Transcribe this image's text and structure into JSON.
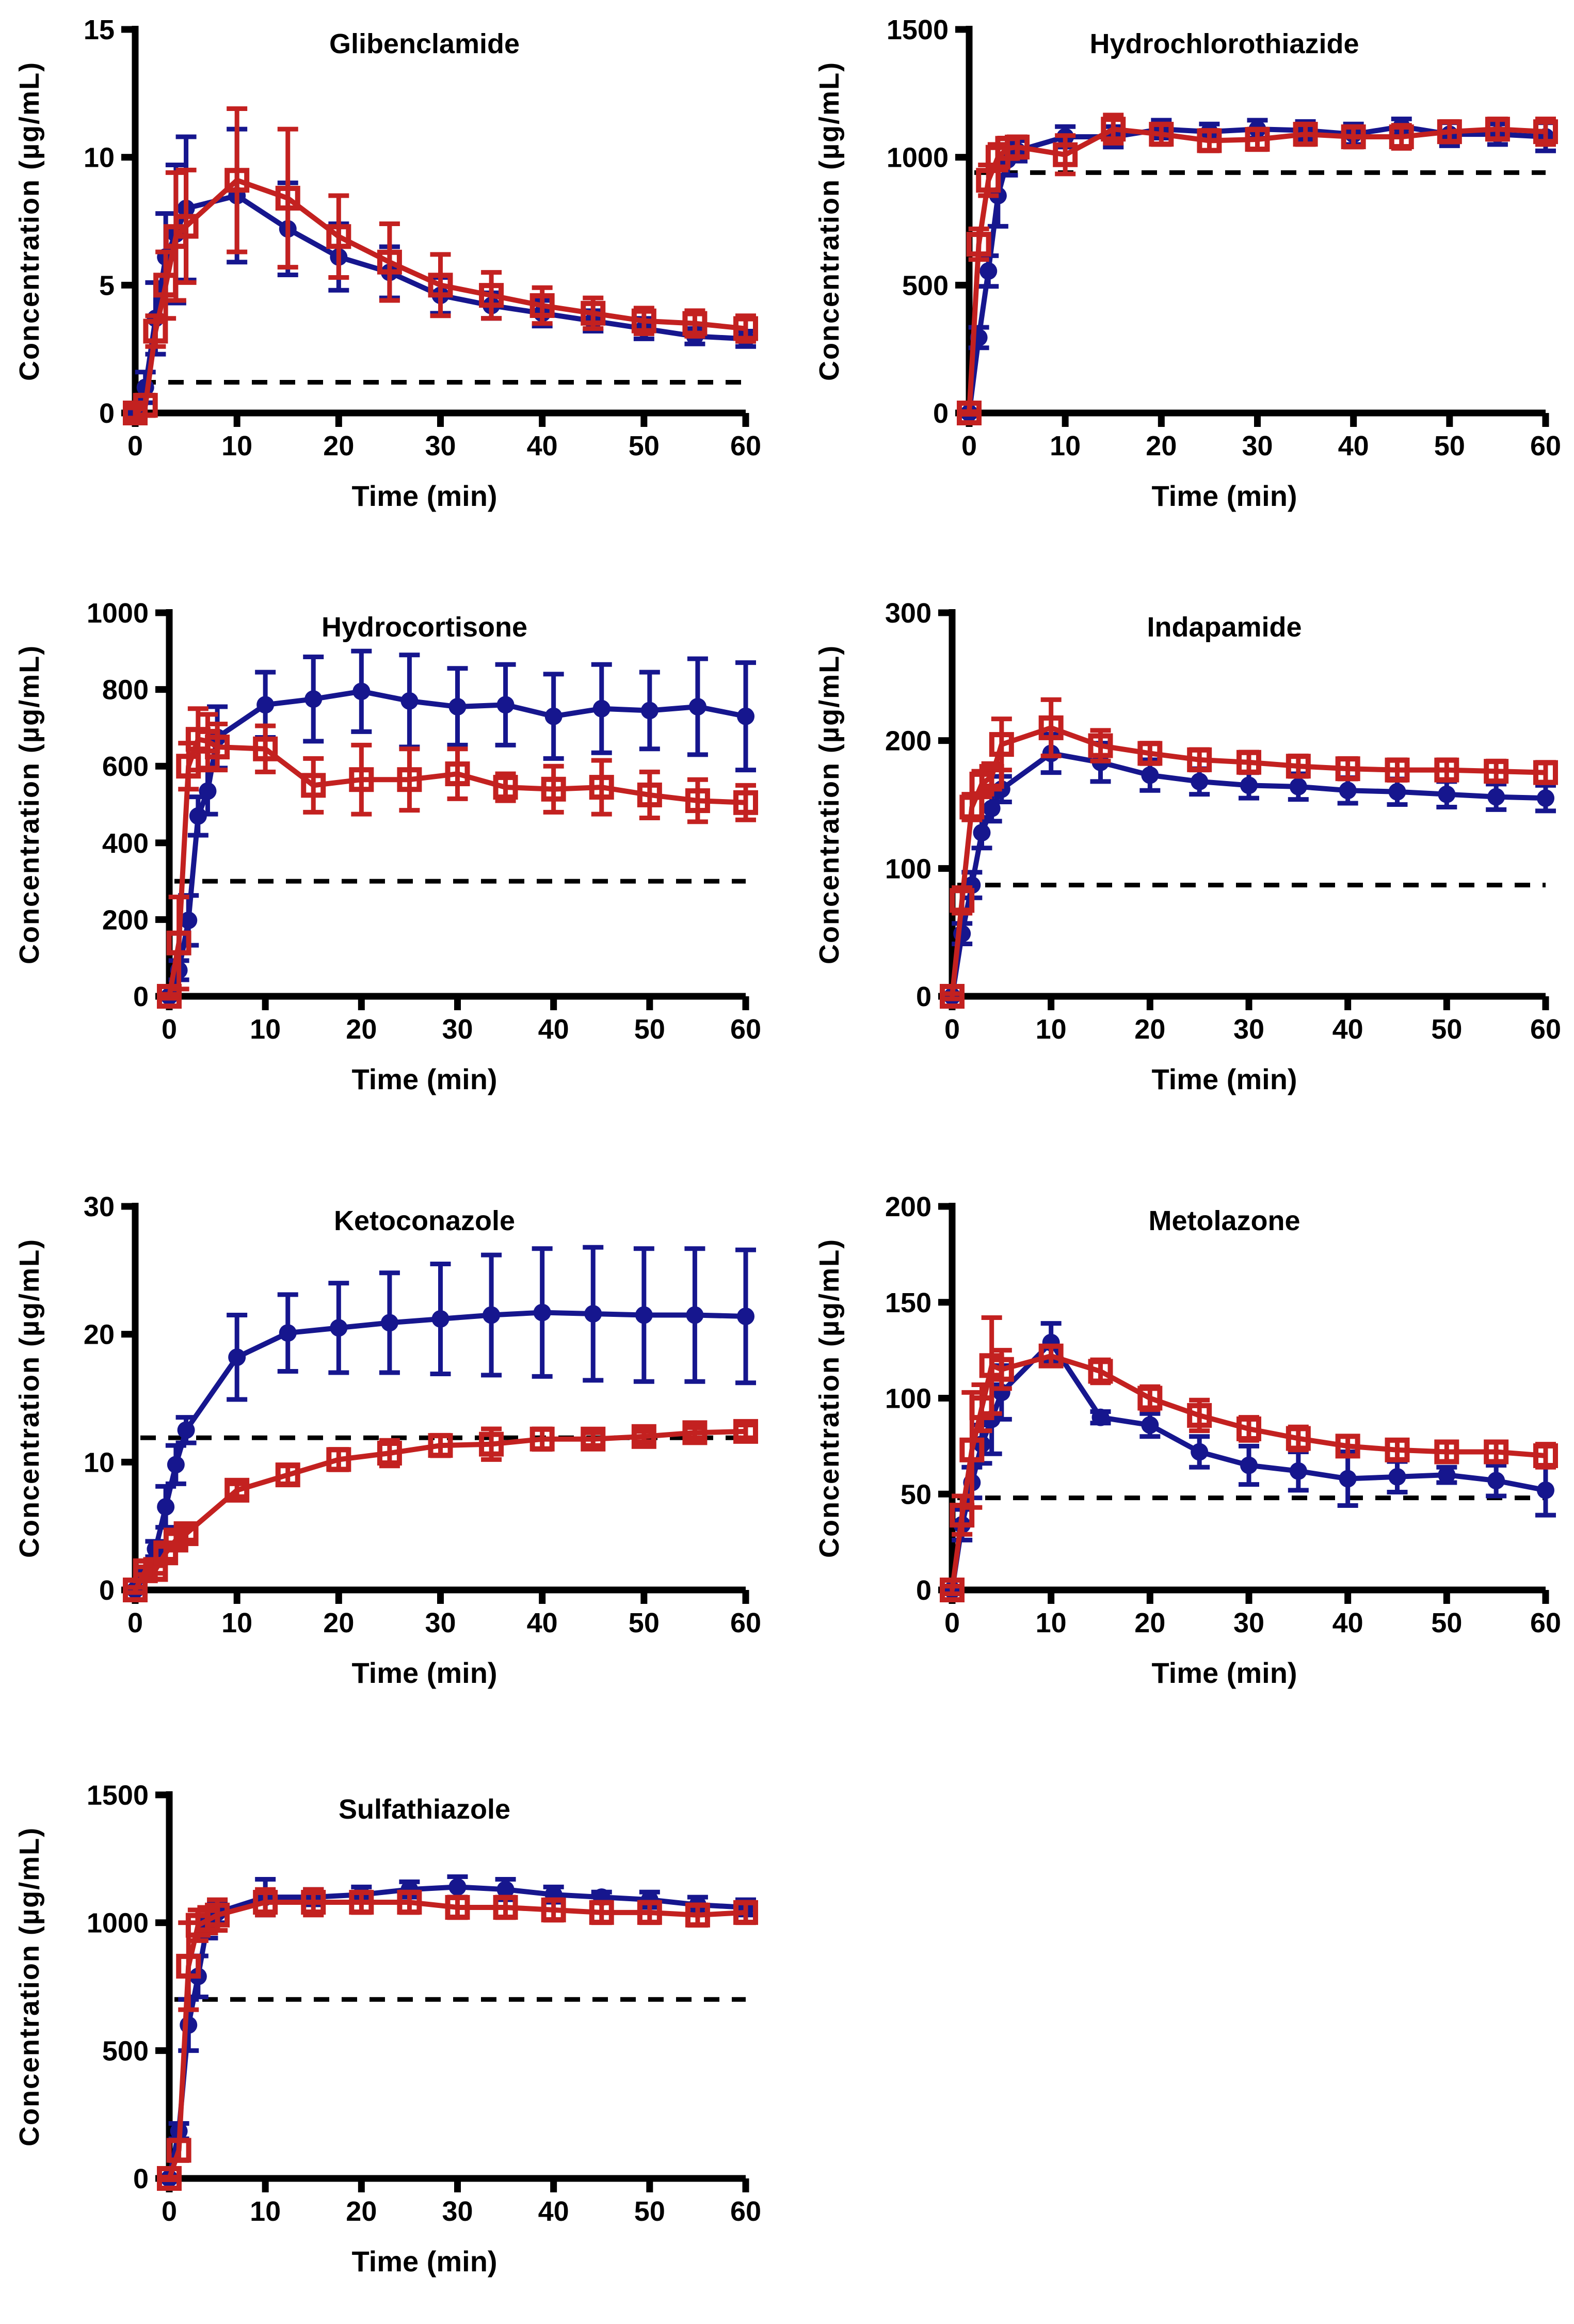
{
  "figure": {
    "background_color": "#FFFFFF",
    "xlabel": "Time (min)",
    "ylabel": "Concentration (µg/mL)",
    "series_style": {
      "blue": {
        "color": "#16168E",
        "marker": "filled-circle"
      },
      "red": {
        "color": "#C32120",
        "marker": "open-square"
      }
    },
    "reference_line_style": "black-dashed"
  },
  "chart_data": [
    {
      "type": "line",
      "title": "Glibenclamide",
      "xlabel": "Time (min)",
      "ylabel": "Concentration (µg/mL)",
      "xlim": [
        0,
        60
      ],
      "ylim": [
        0,
        15
      ],
      "xticks": [
        0,
        10,
        20,
        30,
        40,
        50,
        60
      ],
      "yticks": [
        0,
        5,
        10,
        15
      ],
      "dashed_reference_line": 1.2,
      "x": [
        0,
        1,
        2,
        3,
        4,
        5,
        10,
        15,
        20,
        25,
        30,
        35,
        40,
        45,
        50,
        55,
        60
      ],
      "series": [
        {
          "name": "blue-filled-circles",
          "color": "#16168E",
          "marker": "circle",
          "values": [
            0,
            1.0,
            3.7,
            6.1,
            7.0,
            8.0,
            8.5,
            7.2,
            6.1,
            5.5,
            4.6,
            4.2,
            3.9,
            3.6,
            3.3,
            3.0,
            2.9
          ],
          "errors": [
            0.1,
            0.6,
            1.4,
            1.7,
            2.7,
            2.8,
            2.6,
            1.8,
            1.3,
            1.0,
            0.7,
            0.5,
            0.5,
            0.4,
            0.4,
            0.3,
            0.3
          ]
        },
        {
          "name": "red-open-squares",
          "color": "#C32120",
          "marker": "square",
          "values": [
            0,
            0.3,
            3.2,
            5.0,
            6.9,
            7.3,
            9.1,
            8.4,
            6.9,
            5.9,
            5.0,
            4.6,
            4.2,
            3.9,
            3.6,
            3.5,
            3.3
          ],
          "errors": [
            0.2,
            0.4,
            0.6,
            1.3,
            2.5,
            2.2,
            2.8,
            2.7,
            1.6,
            1.5,
            1.2,
            0.9,
            0.7,
            0.6,
            0.5,
            0.5,
            0.5
          ]
        }
      ]
    },
    {
      "type": "line",
      "title": "Hydrochlorothiazide",
      "xlabel": "Time (min)",
      "ylabel": "Concentration (µg/mL)",
      "xlim": [
        0,
        60
      ],
      "ylim": [
        0,
        1500
      ],
      "xticks": [
        0,
        10,
        20,
        30,
        40,
        50,
        60
      ],
      "yticks": [
        0,
        500,
        1000,
        1500
      ],
      "dashed_reference_line": 940,
      "x": [
        0,
        1,
        2,
        3,
        4,
        5,
        10,
        15,
        20,
        25,
        30,
        35,
        40,
        45,
        50,
        55,
        60
      ],
      "series": [
        {
          "name": "blue-filled-circles",
          "color": "#16168E",
          "marker": "circle",
          "values": [
            0,
            295,
            555,
            850,
            990,
            1025,
            1080,
            1080,
            1110,
            1100,
            1110,
            1105,
            1090,
            1120,
            1090,
            1090,
            1080
          ],
          "errors": [
            5,
            40,
            60,
            120,
            60,
            40,
            40,
            40,
            35,
            30,
            35,
            35,
            40,
            30,
            45,
            40,
            55
          ]
        },
        {
          "name": "red-open-squares",
          "color": "#C32120",
          "marker": "square",
          "values": [
            0,
            660,
            910,
            1000,
            1035,
            1040,
            1010,
            1110,
            1090,
            1065,
            1070,
            1090,
            1080,
            1080,
            1100,
            1110,
            1100
          ],
          "errors": [
            5,
            60,
            60,
            50,
            40,
            40,
            75,
            55,
            40,
            40,
            40,
            40,
            40,
            45,
            40,
            40,
            50
          ]
        }
      ]
    },
    {
      "type": "line",
      "title": "Hydrocortisone",
      "xlabel": "Time (min)",
      "ylabel": "Concentration (µg/mL)",
      "xlim": [
        0,
        60
      ],
      "ylim": [
        0,
        1000
      ],
      "xticks": [
        0,
        10,
        20,
        30,
        40,
        50,
        60
      ],
      "yticks": [
        0,
        200,
        400,
        600,
        800,
        1000
      ],
      "dashed_reference_line": 300,
      "x": [
        0,
        1,
        2,
        3,
        4,
        5,
        10,
        15,
        20,
        25,
        30,
        35,
        40,
        45,
        50,
        55,
        60
      ],
      "series": [
        {
          "name": "blue-filled-circles",
          "color": "#16168E",
          "marker": "circle",
          "values": [
            0,
            68,
            198,
            470,
            535,
            675,
            760,
            775,
            795,
            770,
            755,
            760,
            730,
            750,
            745,
            755,
            730
          ],
          "errors": [
            5,
            25,
            65,
            50,
            60,
            80,
            85,
            110,
            105,
            120,
            100,
            105,
            110,
            115,
            100,
            125,
            140
          ]
        },
        {
          "name": "red-open-squares",
          "color": "#C32120",
          "marker": "square",
          "values": [
            0,
            139,
            600,
            670,
            665,
            650,
            645,
            550,
            565,
            565,
            580,
            545,
            540,
            545,
            525,
            510,
            505
          ],
          "errors": [
            5,
            120,
            60,
            80,
            70,
            60,
            60,
            70,
            90,
            80,
            65,
            35,
            60,
            70,
            60,
            55,
            45
          ]
        }
      ]
    },
    {
      "type": "line",
      "title": "Indapamide",
      "xlabel": "Time (min)",
      "ylabel": "Concentration (µg/mL)",
      "xlim": [
        0,
        60
      ],
      "ylim": [
        0,
        300
      ],
      "xticks": [
        0,
        10,
        20,
        30,
        40,
        50,
        60
      ],
      "yticks": [
        0,
        100,
        200,
        300
      ],
      "dashed_reference_line": 87,
      "x": [
        0,
        1,
        2,
        3,
        4,
        5,
        10,
        15,
        20,
        25,
        30,
        35,
        40,
        45,
        50,
        55,
        60
      ],
      "series": [
        {
          "name": "blue-filled-circles",
          "color": "#16168E",
          "marker": "circle",
          "values": [
            0,
            49,
            87,
            128,
            147,
            162,
            190,
            183,
            173,
            168,
            165,
            164,
            161,
            160,
            158,
            156,
            155
          ],
          "errors": [
            2,
            8,
            10,
            12,
            10,
            10,
            15,
            15,
            12,
            10,
            10,
            10,
            10,
            10,
            10,
            10,
            10
          ]
        },
        {
          "name": "red-open-squares",
          "color": "#C32120",
          "marker": "square",
          "values": [
            0,
            75,
            148,
            166,
            172,
            197,
            210,
            196,
            190,
            185,
            183,
            180,
            178,
            177,
            177,
            176,
            175
          ],
          "errors": [
            2,
            10,
            10,
            10,
            10,
            20,
            22,
            12,
            8,
            8,
            8,
            8,
            8,
            8,
            8,
            8,
            8
          ]
        }
      ]
    },
    {
      "type": "line",
      "title": "Ketoconazole",
      "xlabel": "Time (min)",
      "ylabel": "Concentration (µg/mL)",
      "xlim": [
        0,
        60
      ],
      "ylim": [
        0,
        30
      ],
      "xticks": [
        0,
        10,
        20,
        30,
        40,
        50,
        60
      ],
      "yticks": [
        0,
        10,
        20,
        30
      ],
      "dashed_reference_line": 11.9,
      "x": [
        0,
        1,
        2,
        3,
        4,
        5,
        10,
        15,
        20,
        25,
        30,
        35,
        40,
        45,
        50,
        55,
        60
      ],
      "series": [
        {
          "name": "blue-filled-circles",
          "color": "#16168E",
          "marker": "circle",
          "values": [
            0,
            1.2,
            3.2,
            6.5,
            9.8,
            12.5,
            18.2,
            20.1,
            20.5,
            20.9,
            21.2,
            21.5,
            21.7,
            21.6,
            21.5,
            21.5,
            21.4
          ],
          "errors": [
            0.2,
            0.4,
            0.6,
            1.6,
            1.5,
            1.0,
            3.3,
            3.0,
            3.5,
            3.9,
            4.3,
            4.7,
            5.0,
            5.2,
            5.2,
            5.2,
            5.2
          ]
        },
        {
          "name": "red-open-squares",
          "color": "#C32120",
          "marker": "square",
          "values": [
            0,
            1.5,
            1.6,
            2.9,
            3.9,
            4.4,
            7.8,
            9.0,
            10.2,
            10.7,
            11.3,
            11.4,
            11.8,
            11.8,
            12.0,
            12.3,
            12.4
          ],
          "errors": [
            0.2,
            0.3,
            0.3,
            0.5,
            0.5,
            0.5,
            0.5,
            0.7,
            0.8,
            1.0,
            0.8,
            1.2,
            0.8,
            0.5,
            0.4,
            0.4,
            0.5
          ]
        }
      ]
    },
    {
      "type": "line",
      "title": "Metolazone",
      "xlabel": "Time (min)",
      "ylabel": "Concentration (µg/mL)",
      "xlim": [
        0,
        60
      ],
      "ylim": [
        0,
        200
      ],
      "xticks": [
        0,
        10,
        20,
        30,
        40,
        50,
        60
      ],
      "yticks": [
        0,
        50,
        100,
        150,
        200
      ],
      "dashed_reference_line": 48,
      "x": [
        0,
        1,
        2,
        3,
        4,
        5,
        10,
        15,
        20,
        25,
        30,
        35,
        40,
        45,
        50,
        55,
        60
      ],
      "series": [
        {
          "name": "blue-filled-circles",
          "color": "#16168E",
          "marker": "circle",
          "values": [
            0,
            34,
            56,
            76,
            89,
            103,
            129,
            90,
            86,
            72,
            65,
            62,
            58,
            59,
            60,
            57,
            52
          ],
          "errors": [
            2,
            8,
            8,
            10,
            18,
            14,
            10,
            3,
            6,
            8,
            10,
            10,
            14,
            8,
            4,
            8,
            13
          ]
        },
        {
          "name": "red-open-squares",
          "color": "#C32120",
          "marker": "square",
          "values": [
            0,
            39,
            73,
            95,
            117,
            115,
            122,
            114,
            100,
            91,
            84,
            79,
            75,
            73,
            72,
            72,
            70
          ],
          "errors": [
            2,
            10,
            30,
            12,
            25,
            10,
            5,
            6,
            6,
            8,
            6,
            6,
            5,
            5,
            5,
            5,
            6
          ]
        }
      ]
    },
    {
      "type": "line",
      "title": "Sulfathiazole",
      "xlabel": "Time (min)",
      "ylabel": "Concentration (µg/mL)",
      "xlim": [
        0,
        60
      ],
      "ylim": [
        0,
        1500
      ],
      "xticks": [
        0,
        10,
        20,
        30,
        40,
        50,
        60
      ],
      "yticks": [
        0,
        500,
        1000,
        1500
      ],
      "dashed_reference_line": 700,
      "x": [
        0,
        1,
        2,
        3,
        4,
        5,
        10,
        15,
        20,
        25,
        30,
        35,
        40,
        45,
        50,
        55,
        60
      ],
      "series": [
        {
          "name": "blue-filled-circles",
          "color": "#16168E",
          "marker": "circle",
          "values": [
            0,
            185,
            600,
            790,
            1000,
            1040,
            1100,
            1100,
            1110,
            1130,
            1140,
            1130,
            1110,
            1100,
            1090,
            1070,
            1060
          ],
          "errors": [
            5,
            30,
            100,
            80,
            60,
            40,
            70,
            30,
            30,
            30,
            40,
            40,
            30,
            20,
            30,
            30,
            30
          ]
        },
        {
          "name": "red-open-squares",
          "color": "#C32120",
          "marker": "square",
          "values": [
            0,
            110,
            830,
            990,
            1010,
            1030,
            1080,
            1080,
            1080,
            1080,
            1060,
            1060,
            1050,
            1040,
            1040,
            1030,
            1040
          ],
          "errors": [
            5,
            40,
            170,
            60,
            50,
            60,
            50,
            50,
            40,
            40,
            40,
            40,
            40,
            40,
            40,
            40,
            40
          ]
        }
      ]
    }
  ]
}
